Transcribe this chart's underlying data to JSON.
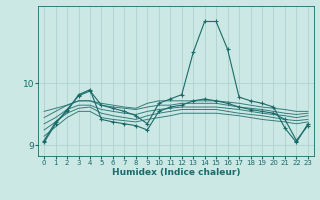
{
  "xlabel": "Humidex (Indice chaleur)",
  "bg_color": "#cce8e4",
  "grid_color": "#aacfcc",
  "line_color": "#1a6b6a",
  "xlim": [
    -0.5,
    23.5
  ],
  "ylim": [
    8.83,
    11.25
  ],
  "yticks": [
    9,
    10
  ],
  "xticks": [
    0,
    1,
    2,
    3,
    4,
    5,
    6,
    7,
    8,
    9,
    10,
    11,
    12,
    13,
    14,
    15,
    16,
    17,
    18,
    19,
    20,
    21,
    22,
    23
  ],
  "series": [
    [
      9.55,
      9.6,
      9.65,
      9.72,
      9.72,
      9.68,
      9.65,
      9.62,
      9.6,
      9.68,
      9.72,
      9.72,
      9.72,
      9.72,
      9.72,
      9.72,
      9.7,
      9.68,
      9.65,
      9.62,
      9.6,
      9.58,
      9.55,
      9.55
    ],
    [
      9.45,
      9.55,
      9.65,
      9.72,
      9.72,
      9.65,
      9.62,
      9.6,
      9.58,
      9.62,
      9.65,
      9.65,
      9.68,
      9.68,
      9.68,
      9.68,
      9.65,
      9.62,
      9.6,
      9.58,
      9.55,
      9.52,
      9.5,
      9.52
    ],
    [
      9.35,
      9.45,
      9.58,
      9.65,
      9.65,
      9.58,
      9.55,
      9.52,
      9.5,
      9.55,
      9.58,
      9.6,
      9.62,
      9.62,
      9.62,
      9.62,
      9.6,
      9.58,
      9.55,
      9.52,
      9.5,
      9.48,
      9.45,
      9.48
    ],
    [
      9.25,
      9.38,
      9.52,
      9.6,
      9.62,
      9.52,
      9.48,
      9.45,
      9.42,
      9.48,
      9.52,
      9.55,
      9.58,
      9.58,
      9.58,
      9.58,
      9.55,
      9.52,
      9.5,
      9.48,
      9.45,
      9.42,
      9.4,
      9.42
    ],
    [
      9.15,
      9.3,
      9.45,
      9.55,
      9.55,
      9.45,
      9.42,
      9.4,
      9.38,
      9.42,
      9.45,
      9.48,
      9.52,
      9.52,
      9.52,
      9.52,
      9.5,
      9.48,
      9.45,
      9.42,
      9.4,
      9.38,
      9.35,
      9.38
    ]
  ],
  "marked_series": [
    {
      "y": [
        9.05,
        9.35,
        9.58,
        9.8,
        9.88,
        9.65,
        9.6,
        9.55,
        9.48,
        9.35,
        9.68,
        9.75,
        9.82,
        10.5,
        11.0,
        11.0,
        10.55,
        9.78,
        9.72,
        9.68,
        9.62,
        9.28,
        9.05,
        9.35
      ],
      "marker": true
    },
    {
      "y": [
        9.08,
        9.38,
        9.55,
        9.82,
        9.9,
        9.42,
        9.38,
        9.35,
        9.32,
        9.25,
        9.55,
        9.62,
        9.65,
        9.72,
        9.75,
        9.72,
        9.68,
        9.62,
        9.58,
        9.55,
        9.52,
        9.42,
        9.08,
        9.32
      ],
      "marker": true
    }
  ]
}
